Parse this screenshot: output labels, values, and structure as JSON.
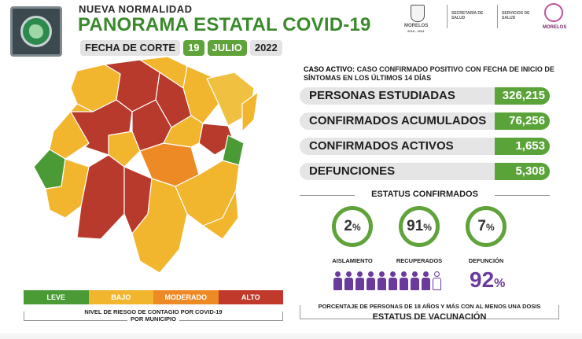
{
  "header": {
    "subtitle": "NUEVA NORMALIDAD",
    "title": "PANORAMA ESTATAL COVID-19",
    "cut_label": "FECHA DE CORTE",
    "cut_day": "19",
    "cut_month": "JULIO",
    "cut_year": "2022"
  },
  "agencies": {
    "state": "MORELOS",
    "state_sub": "2018 - 2024",
    "dept1": "SECRETARÍA DE SALUD",
    "dept2": "SERVICIOS DE SALUD",
    "brand": "MORELOS"
  },
  "case_definition": {
    "term": "CASO ACTIVO:",
    "text": " CASO CONFIRMADO POSITIVO CON FECHA DE INICIO DE SÍNTOMAS EN LOS ÚLTIMOS 14 DÍAS"
  },
  "stats": [
    {
      "label": "PERSONAS ESTUDIADAS",
      "value": "326,215"
    },
    {
      "label": "CONFIRMADOS ACUMULADOS",
      "value": "76,256"
    },
    {
      "label": "CONFIRMADOS ACTIVOS",
      "value": "1,653"
    },
    {
      "label": "DEFUNCIONES",
      "value": "5,308"
    }
  ],
  "status_confirmed": {
    "title": "ESTATUS CONFIRMADOS",
    "items": [
      {
        "value": "2",
        "unit": "%",
        "label": "AISLAMIENTO"
      },
      {
        "value": "91",
        "unit": "%",
        "label": "RECUPERADOS"
      },
      {
        "value": "7",
        "unit": "%",
        "label": "DEFUNCIÓN"
      }
    ]
  },
  "vaccination": {
    "percent": "92",
    "unit": "%",
    "filled_people": 9,
    "total_people": 10,
    "caption": "PORCENTAJE DE PERSONAS DE 18 AÑOS Y MÁS CON AL MENOS UNA DOSIS",
    "title": "ESTATUS DE VACUNACIÓN"
  },
  "legend": {
    "levels": [
      "LEVE",
      "BAJO",
      "MODERADO",
      "ALTO"
    ],
    "colors": [
      "#4a9a36",
      "#f2b52e",
      "#ee8a26",
      "#c0392b"
    ],
    "caption_line1": "NIVEL DE RIESGO DE CONTAGIO POR COVID-19",
    "caption_line2": "POR MUNICIPIO"
  },
  "colors": {
    "accent_green": "#5fa33a",
    "title_green": "#3a8a2c",
    "vaccination_purple": "#6a3b9c"
  }
}
